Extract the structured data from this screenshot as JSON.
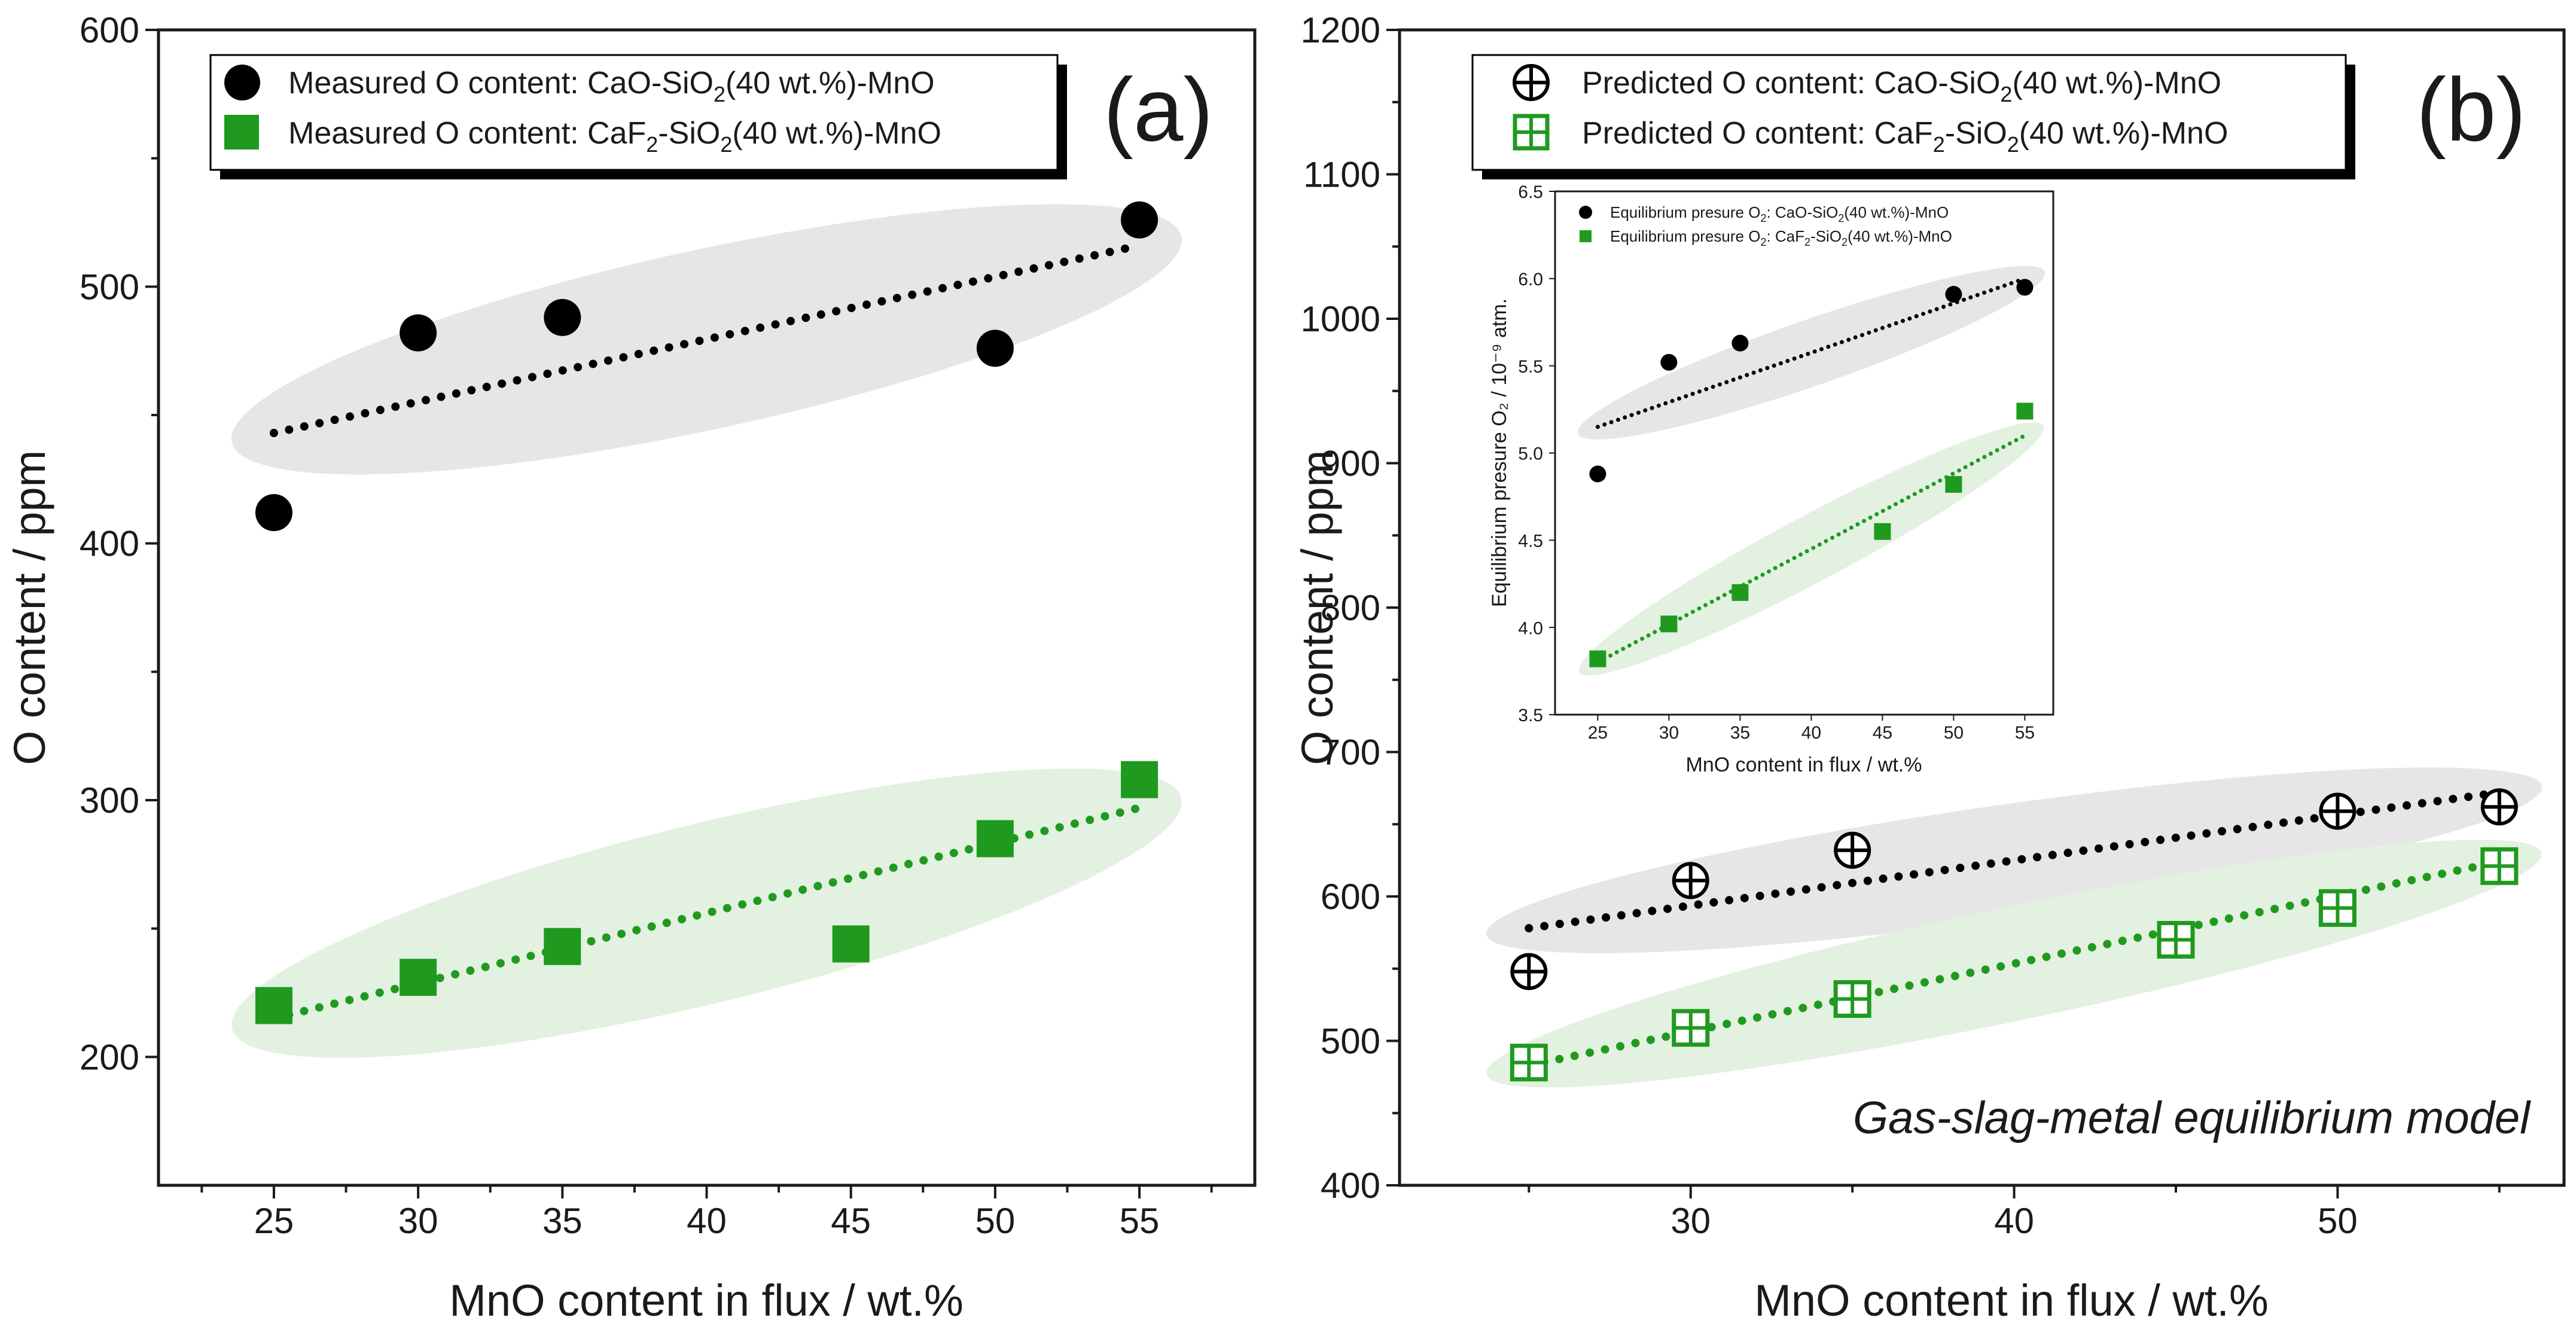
{
  "chart_data": [
    {
      "panel": "(a)",
      "type": "scatter",
      "xlabel": "MnO content in flux / wt.%",
      "ylabel": "O content / ppm",
      "xlim": [
        21,
        59
      ],
      "ylim": [
        150,
        600
      ],
      "xticks": [
        25,
        30,
        35,
        40,
        45,
        50,
        55
      ],
      "yticks": [
        200,
        300,
        400,
        500,
        600
      ],
      "legend_position": "top-left",
      "series": [
        {
          "name_main": "Measured O content: CaO-SiO",
          "name_sub": "2",
          "name_end": "(40 wt.%)-MnO",
          "marker": "circle",
          "color": "#000000",
          "x": [
            25,
            30,
            35,
            50,
            55
          ],
          "y": [
            412,
            482,
            488,
            476,
            526
          ],
          "trend": [
            [
              25,
              443
            ],
            [
              55,
              516
            ]
          ],
          "band_color": "#e6e6e6"
        },
        {
          "name_main": "Measured O content: CaF",
          "name_sub": "2",
          "name_mid": "-SiO",
          "name_sub2": "2",
          "name_end": "(40 wt.%)-MnO",
          "marker": "square",
          "color": "#1f9a1f",
          "x": [
            25,
            30,
            35,
            45,
            50,
            55
          ],
          "y": [
            220,
            231,
            243,
            244,
            285,
            308
          ],
          "trend": [
            [
              25,
              215
            ],
            [
              55,
              297
            ]
          ],
          "band_color": "#e3f1e0"
        }
      ]
    },
    {
      "panel": "(b)",
      "type": "scatter",
      "xlabel": "MnO content in flux / wt.%",
      "ylabel": "O content / ppm",
      "xlim": [
        21,
        57
      ],
      "ylim": [
        400,
        1200
      ],
      "xticks": [
        30,
        40,
        50
      ],
      "yticks": [
        400,
        500,
        600,
        700,
        800,
        900,
        1000,
        1100,
        1200
      ],
      "legend_position": "top-left",
      "annotation": "Gas-slag-metal equilibrium model",
      "series": [
        {
          "name_main": "Predicted O content: CaO-SiO",
          "name_sub": "2",
          "name_end": "(40 wt.%)-MnO",
          "marker": "circle-plus",
          "color": "#000000",
          "x": [
            25,
            30,
            35,
            50,
            55
          ],
          "y": [
            548,
            611,
            632,
            659,
            662
          ],
          "trend": [
            [
              25,
              578
            ],
            [
              55,
              672
            ]
          ],
          "band_color": "#e6e6e6"
        },
        {
          "name_main": "Predicted O content: CaF",
          "name_sub": "2",
          "name_mid": "-SiO",
          "name_sub2": "2",
          "name_end": "(40 wt.%)-MnO",
          "marker": "square-plus",
          "color": "#1f9a1f",
          "x": [
            25,
            30,
            35,
            45,
            50,
            55
          ],
          "y": [
            485,
            509,
            529,
            570,
            592,
            621
          ],
          "trend": [
            [
              25,
              483
            ],
            [
              55,
              624
            ]
          ],
          "band_color": "#e3f1e0"
        }
      ]
    },
    {
      "panel": "(b) inset",
      "type": "scatter",
      "xlabel": "MnO content in flux / wt.%",
      "ylabel": "Equilibrium presure O₂ / 10⁻⁹ atm.",
      "xlim": [
        22,
        57
      ],
      "ylim": [
        3.5,
        6.5
      ],
      "xticks": [
        25,
        30,
        35,
        40,
        45,
        50,
        55
      ],
      "yticks": [
        3.5,
        4.0,
        4.5,
        5.0,
        5.5,
        6.0,
        6.5
      ],
      "legend_position": "top-left",
      "series": [
        {
          "name_main": "Equilibrium presure O",
          "name_sub": "2",
          "name_mid": ": CaO-SiO",
          "name_sub2": "2",
          "name_end": "(40 wt.%)-MnO",
          "marker": "circle",
          "color": "#000000",
          "x": [
            25,
            30,
            35,
            50,
            55
          ],
          "y": [
            4.88,
            5.52,
            5.63,
            5.91,
            5.95
          ],
          "trend": [
            [
              25,
              5.15
            ],
            [
              55,
              6.0
            ]
          ],
          "band_color": "#e6e6e6"
        },
        {
          "name_main": "Equilibrium presure O",
          "name_sub": "2",
          "name_mid": ": CaF",
          "name_sub2": "2",
          "name_mid2": "-SiO",
          "name_sub3": "2",
          "name_end": "(40 wt.%)-MnO",
          "marker": "square",
          "color": "#1f9a1f",
          "x": [
            25,
            30,
            35,
            45,
            50,
            55
          ],
          "y": [
            3.82,
            4.02,
            4.2,
            4.55,
            4.82,
            5.24
          ],
          "trend": [
            [
              25,
              3.8
            ],
            [
              55,
              5.1
            ]
          ],
          "band_color": "#e3f1e0"
        }
      ]
    }
  ]
}
